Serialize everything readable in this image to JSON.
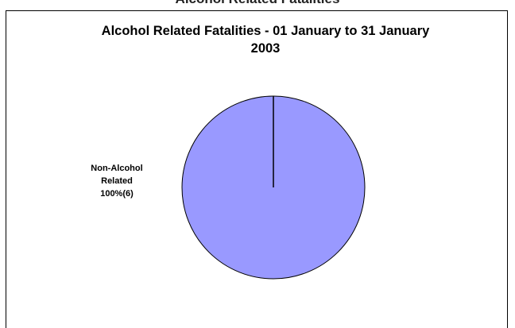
{
  "header_fragment": "Alcohol Related Fatalities",
  "chart_data": {
    "type": "pie",
    "title_lines": [
      "Alcohol Related Fatalities - 01 January to 31 January",
      "2003"
    ],
    "slices": [
      {
        "name": "Non-Alcohol Related",
        "label_lines": [
          "Non-Alcohol",
          "Related",
          "100%(6)"
        ],
        "value": 6,
        "percent": 100,
        "color": "#9999ff"
      }
    ],
    "legend": "none",
    "colors": {
      "slice_fill": "#9999ff",
      "edge": "#000000"
    }
  }
}
